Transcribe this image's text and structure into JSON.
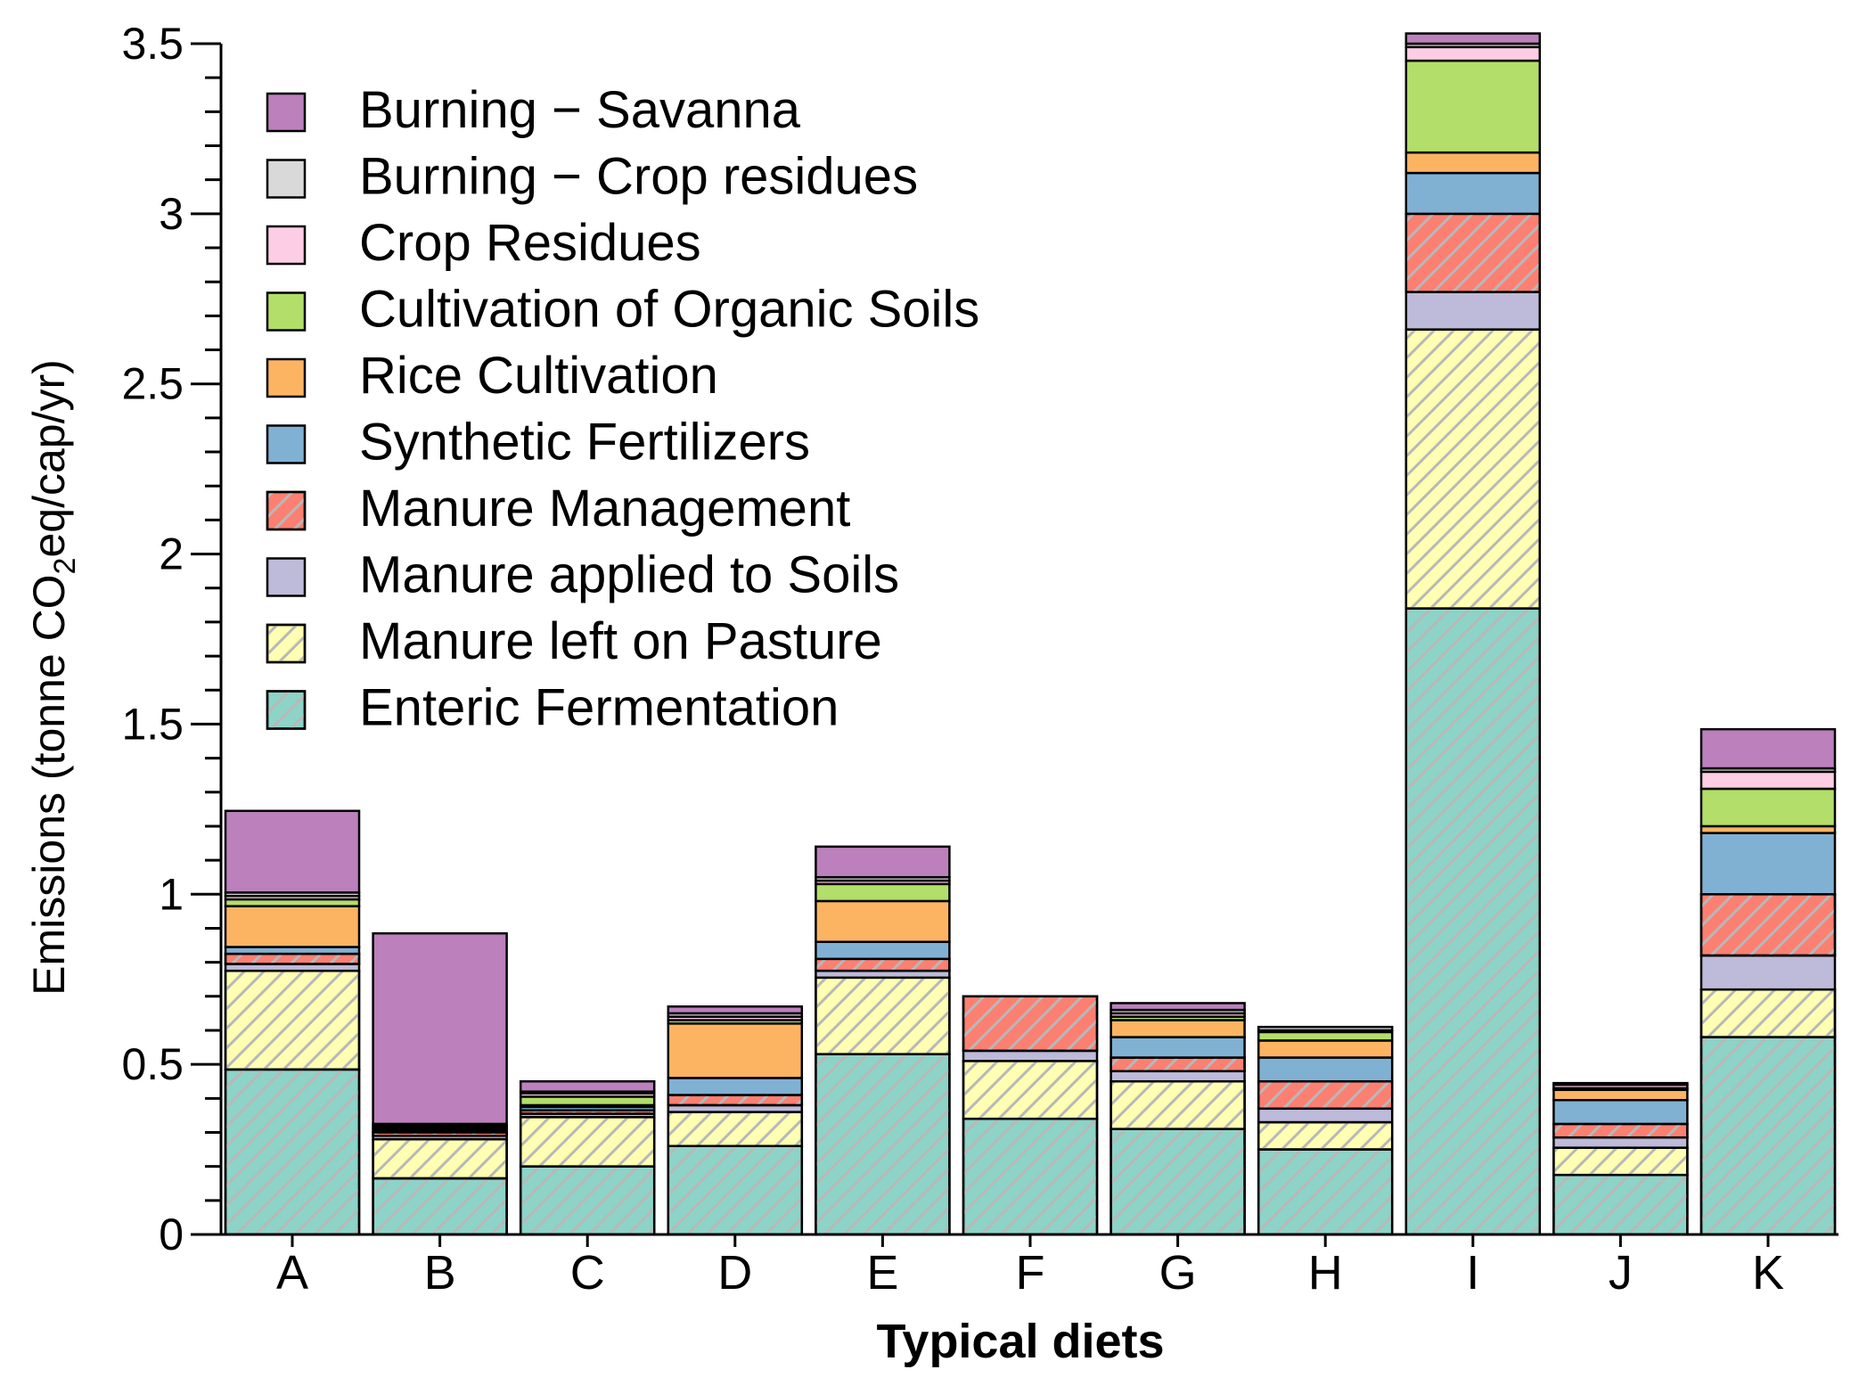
{
  "chart_data": {
    "type": "bar",
    "stacked": true,
    "xlabel": "Typical diets",
    "ylabel": {
      "prefix": "Emissions (tonne CO",
      "subscript": "2",
      "suffix": "eq/cap/yr)"
    },
    "ylim": [
      0,
      3.5
    ],
    "yticks": [
      "0",
      "0.5",
      "1",
      "1.5",
      "2",
      "2.5",
      "3",
      "3.5"
    ],
    "ytick_values": [
      0,
      0.5,
      1,
      1.5,
      2,
      2.5,
      3,
      3.5
    ],
    "categories": [
      "A",
      "B",
      "C",
      "D",
      "E",
      "F",
      "G",
      "H",
      "I",
      "J",
      "K"
    ],
    "legend_position": "top-left",
    "series": [
      {
        "name": "Enteric Fermentation",
        "color": "#8dd3c7",
        "hatched": true,
        "values": [
          0.485,
          0.165,
          0.2,
          0.26,
          0.53,
          0.34,
          0.31,
          0.25,
          1.84,
          0.175,
          0.58
        ]
      },
      {
        "name": "Manure left on Pasture",
        "color": "#ffffb3",
        "hatched": true,
        "values": [
          0.29,
          0.115,
          0.145,
          0.1,
          0.225,
          0.17,
          0.14,
          0.08,
          0.82,
          0.08,
          0.14
        ]
      },
      {
        "name": "Manure applied to Soils",
        "color": "#bebada",
        "hatched": false,
        "values": [
          0.02,
          0.01,
          0.01,
          0.02,
          0.02,
          0.03,
          0.03,
          0.04,
          0.11,
          0.03,
          0.1
        ]
      },
      {
        "name": "Manure Management",
        "color": "#fb8072",
        "hatched": true,
        "values": [
          0.03,
          0.01,
          0.01,
          0.03,
          0.035,
          0.16,
          0.04,
          0.08,
          0.23,
          0.04,
          0.18
        ]
      },
      {
        "name": "Synthetic Fertilizers",
        "color": "#80b1d3",
        "hatched": false,
        "values": [
          0.02,
          0.005,
          0.01,
          0.05,
          0.05,
          0.0,
          0.06,
          0.07,
          0.12,
          0.07,
          0.18
        ]
      },
      {
        "name": "Rice Cultivation",
        "color": "#fdb462",
        "hatched": false,
        "values": [
          0.12,
          0.005,
          0.005,
          0.16,
          0.12,
          0.0,
          0.05,
          0.05,
          0.06,
          0.03,
          0.02
        ]
      },
      {
        "name": "Cultivation of Organic Soils",
        "color": "#b3de69",
        "hatched": false,
        "values": [
          0.02,
          0.005,
          0.025,
          0.01,
          0.05,
          0.0,
          0.01,
          0.025,
          0.27,
          0.005,
          0.11
        ]
      },
      {
        "name": "Crop Residues",
        "color": "#fccde5",
        "hatched": false,
        "values": [
          0.01,
          0.005,
          0.01,
          0.01,
          0.01,
          0.0,
          0.01,
          0.005,
          0.04,
          0.01,
          0.05
        ]
      },
      {
        "name": "Burning − Crop residues",
        "color": "#d9d9d9",
        "hatched": false,
        "values": [
          0.01,
          0.005,
          0.005,
          0.01,
          0.01,
          0.0,
          0.01,
          0.01,
          0.01,
          0.005,
          0.01
        ]
      },
      {
        "name": "Burning − Savanna",
        "color": "#bc80bd",
        "hatched": false,
        "values": [
          0.24,
          0.56,
          0.03,
          0.02,
          0.09,
          0.0,
          0.02,
          0.0,
          0.03,
          0.0,
          0.115
        ]
      }
    ]
  }
}
